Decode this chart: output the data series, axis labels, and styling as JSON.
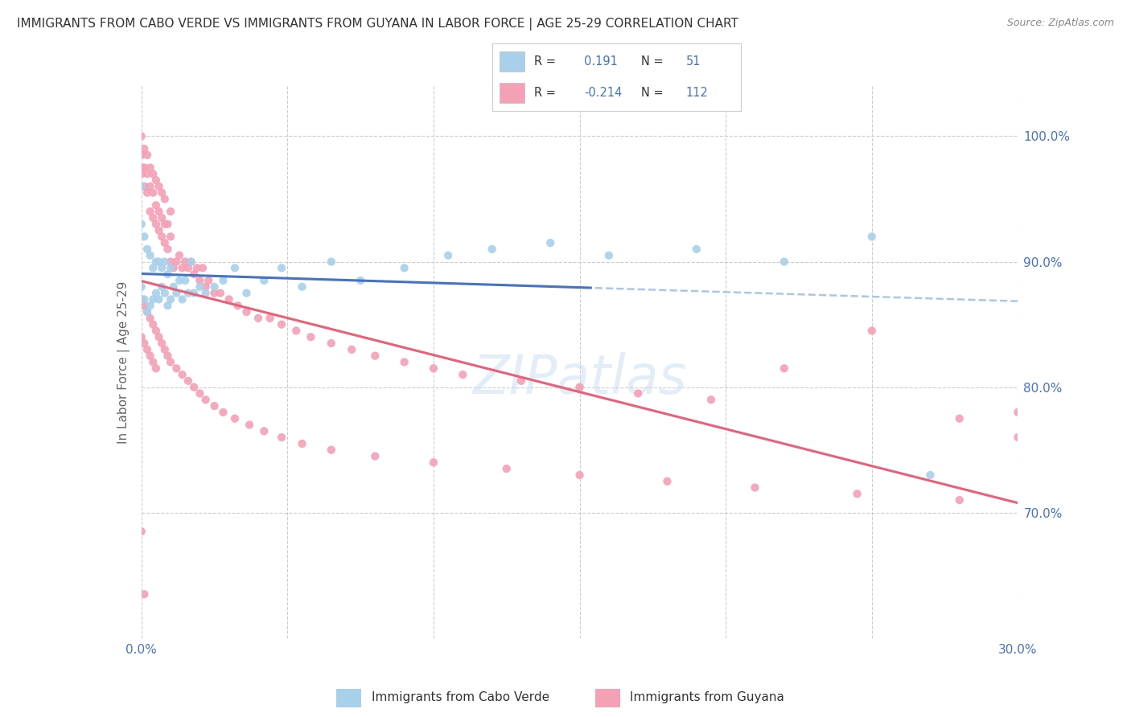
{
  "title": "IMMIGRANTS FROM CABO VERDE VS IMMIGRANTS FROM GUYANA IN LABOR FORCE | AGE 25-29 CORRELATION CHART",
  "source": "Source: ZipAtlas.com",
  "ylabel": "In Labor Force | Age 25-29",
  "x_min": 0.0,
  "x_max": 0.3,
  "y_min": 0.6,
  "y_max": 1.04,
  "y_ticks_right": [
    0.7,
    0.8,
    0.9,
    1.0
  ],
  "y_tick_labels_right": [
    "70.0%",
    "80.0%",
    "90.0%",
    "100.0%"
  ],
  "cabo_verde_color": "#A8D0EA",
  "guyana_color": "#F4A0B5",
  "cabo_verde_line_color": "#4472C4",
  "guyana_line_color": "#E8607A",
  "cabo_verde_dash_color": "#A8C8E8",
  "cabo_verde_scatter_x": [
    0.0,
    0.0,
    0.0,
    0.001,
    0.001,
    0.002,
    0.002,
    0.003,
    0.003,
    0.004,
    0.004,
    0.005,
    0.005,
    0.006,
    0.006,
    0.007,
    0.007,
    0.008,
    0.008,
    0.009,
    0.009,
    0.01,
    0.01,
    0.011,
    0.012,
    0.013,
    0.014,
    0.015,
    0.016,
    0.017,
    0.018,
    0.02,
    0.022,
    0.025,
    0.028,
    0.032,
    0.036,
    0.042,
    0.048,
    0.055,
    0.065,
    0.075,
    0.09,
    0.105,
    0.12,
    0.14,
    0.16,
    0.19,
    0.22,
    0.25,
    0.27
  ],
  "cabo_verde_scatter_y": [
    0.88,
    0.93,
    0.96,
    0.87,
    0.92,
    0.86,
    0.91,
    0.865,
    0.905,
    0.87,
    0.895,
    0.875,
    0.9,
    0.87,
    0.9,
    0.88,
    0.895,
    0.875,
    0.9,
    0.865,
    0.89,
    0.87,
    0.895,
    0.88,
    0.875,
    0.885,
    0.87,
    0.885,
    0.875,
    0.9,
    0.875,
    0.88,
    0.875,
    0.88,
    0.885,
    0.895,
    0.875,
    0.885,
    0.895,
    0.88,
    0.9,
    0.885,
    0.895,
    0.905,
    0.91,
    0.915,
    0.905,
    0.91,
    0.9,
    0.92,
    0.73
  ],
  "guyana_scatter_x": [
    0.0,
    0.0,
    0.0,
    0.0,
    0.001,
    0.001,
    0.001,
    0.002,
    0.002,
    0.002,
    0.003,
    0.003,
    0.003,
    0.004,
    0.004,
    0.004,
    0.005,
    0.005,
    0.005,
    0.006,
    0.006,
    0.006,
    0.007,
    0.007,
    0.007,
    0.008,
    0.008,
    0.008,
    0.009,
    0.009,
    0.01,
    0.01,
    0.01,
    0.011,
    0.012,
    0.013,
    0.014,
    0.015,
    0.016,
    0.017,
    0.018,
    0.019,
    0.02,
    0.021,
    0.022,
    0.023,
    0.025,
    0.027,
    0.03,
    0.033,
    0.036,
    0.04,
    0.044,
    0.048,
    0.053,
    0.058,
    0.065,
    0.072,
    0.08,
    0.09,
    0.1,
    0.11,
    0.13,
    0.15,
    0.17,
    0.195,
    0.22,
    0.25,
    0.28,
    0.3,
    0.0,
    0.0,
    0.001,
    0.001,
    0.002,
    0.002,
    0.003,
    0.003,
    0.004,
    0.004,
    0.005,
    0.005,
    0.006,
    0.007,
    0.008,
    0.009,
    0.01,
    0.012,
    0.014,
    0.016,
    0.018,
    0.02,
    0.022,
    0.025,
    0.028,
    0.032,
    0.037,
    0.042,
    0.048,
    0.055,
    0.065,
    0.08,
    0.1,
    0.125,
    0.15,
    0.18,
    0.21,
    0.245,
    0.28,
    0.3,
    0.0,
    0.001
  ],
  "guyana_scatter_y": [
    0.97,
    1.0,
    0.975,
    0.985,
    0.96,
    0.975,
    0.99,
    0.955,
    0.97,
    0.985,
    0.94,
    0.96,
    0.975,
    0.935,
    0.955,
    0.97,
    0.93,
    0.945,
    0.965,
    0.925,
    0.94,
    0.96,
    0.92,
    0.935,
    0.955,
    0.915,
    0.93,
    0.95,
    0.91,
    0.93,
    0.9,
    0.92,
    0.94,
    0.895,
    0.9,
    0.905,
    0.895,
    0.9,
    0.895,
    0.9,
    0.89,
    0.895,
    0.885,
    0.895,
    0.88,
    0.885,
    0.875,
    0.875,
    0.87,
    0.865,
    0.86,
    0.855,
    0.855,
    0.85,
    0.845,
    0.84,
    0.835,
    0.83,
    0.825,
    0.82,
    0.815,
    0.81,
    0.805,
    0.8,
    0.795,
    0.79,
    0.815,
    0.845,
    0.775,
    0.78,
    0.87,
    0.84,
    0.865,
    0.835,
    0.86,
    0.83,
    0.855,
    0.825,
    0.85,
    0.82,
    0.845,
    0.815,
    0.84,
    0.835,
    0.83,
    0.825,
    0.82,
    0.815,
    0.81,
    0.805,
    0.8,
    0.795,
    0.79,
    0.785,
    0.78,
    0.775,
    0.77,
    0.765,
    0.76,
    0.755,
    0.75,
    0.745,
    0.74,
    0.735,
    0.73,
    0.725,
    0.72,
    0.715,
    0.71,
    0.76,
    0.685,
    0.635
  ]
}
